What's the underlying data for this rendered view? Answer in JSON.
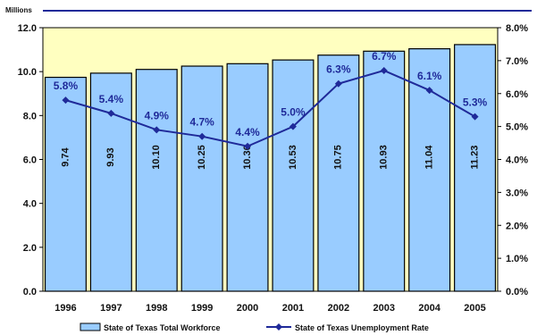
{
  "chart_data": {
    "type": "bar",
    "units_label": "Millions",
    "categories": [
      "1996",
      "1997",
      "1998",
      "1999",
      "2000",
      "2001",
      "2002",
      "2003",
      "2004",
      "2005"
    ],
    "series": [
      {
        "name": "State of Texas Total Workforce",
        "kind": "bar",
        "axis": "left",
        "values": [
          9.74,
          9.93,
          10.1,
          10.25,
          10.36,
          10.53,
          10.75,
          10.93,
          11.04,
          11.23
        ],
        "labels": [
          "9.74",
          "9.93",
          "10.10",
          "10.25",
          "10.36",
          "10.53",
          "10.75",
          "10.93",
          "11.04",
          "11.23"
        ],
        "color": "#99ccff"
      },
      {
        "name": "State of Texas Unemployment Rate",
        "kind": "line",
        "axis": "right",
        "values": [
          5.8,
          5.4,
          4.9,
          4.7,
          4.4,
          5.0,
          6.3,
          6.7,
          6.1,
          5.3
        ],
        "labels": [
          "5.8%",
          "5.4%",
          "4.9%",
          "4.7%",
          "4.4%",
          "5.0%",
          "6.3%",
          "6.7%",
          "6.1%",
          "5.3%"
        ],
        "color": "#1f2a99"
      }
    ],
    "ylim_left": [
      0,
      12
    ],
    "yticks_left": [
      "0.0",
      "2.0",
      "4.0",
      "6.0",
      "8.0",
      "10.0",
      "12.0"
    ],
    "ylim_right": [
      0,
      8
    ],
    "yticks_right": [
      "0.0%",
      "1.0%",
      "2.0%",
      "3.0%",
      "4.0%",
      "5.0%",
      "6.0%",
      "7.0%",
      "8.0%"
    ],
    "plot_background": "#ffffc0",
    "grid": false,
    "legend_position": "bottom"
  }
}
